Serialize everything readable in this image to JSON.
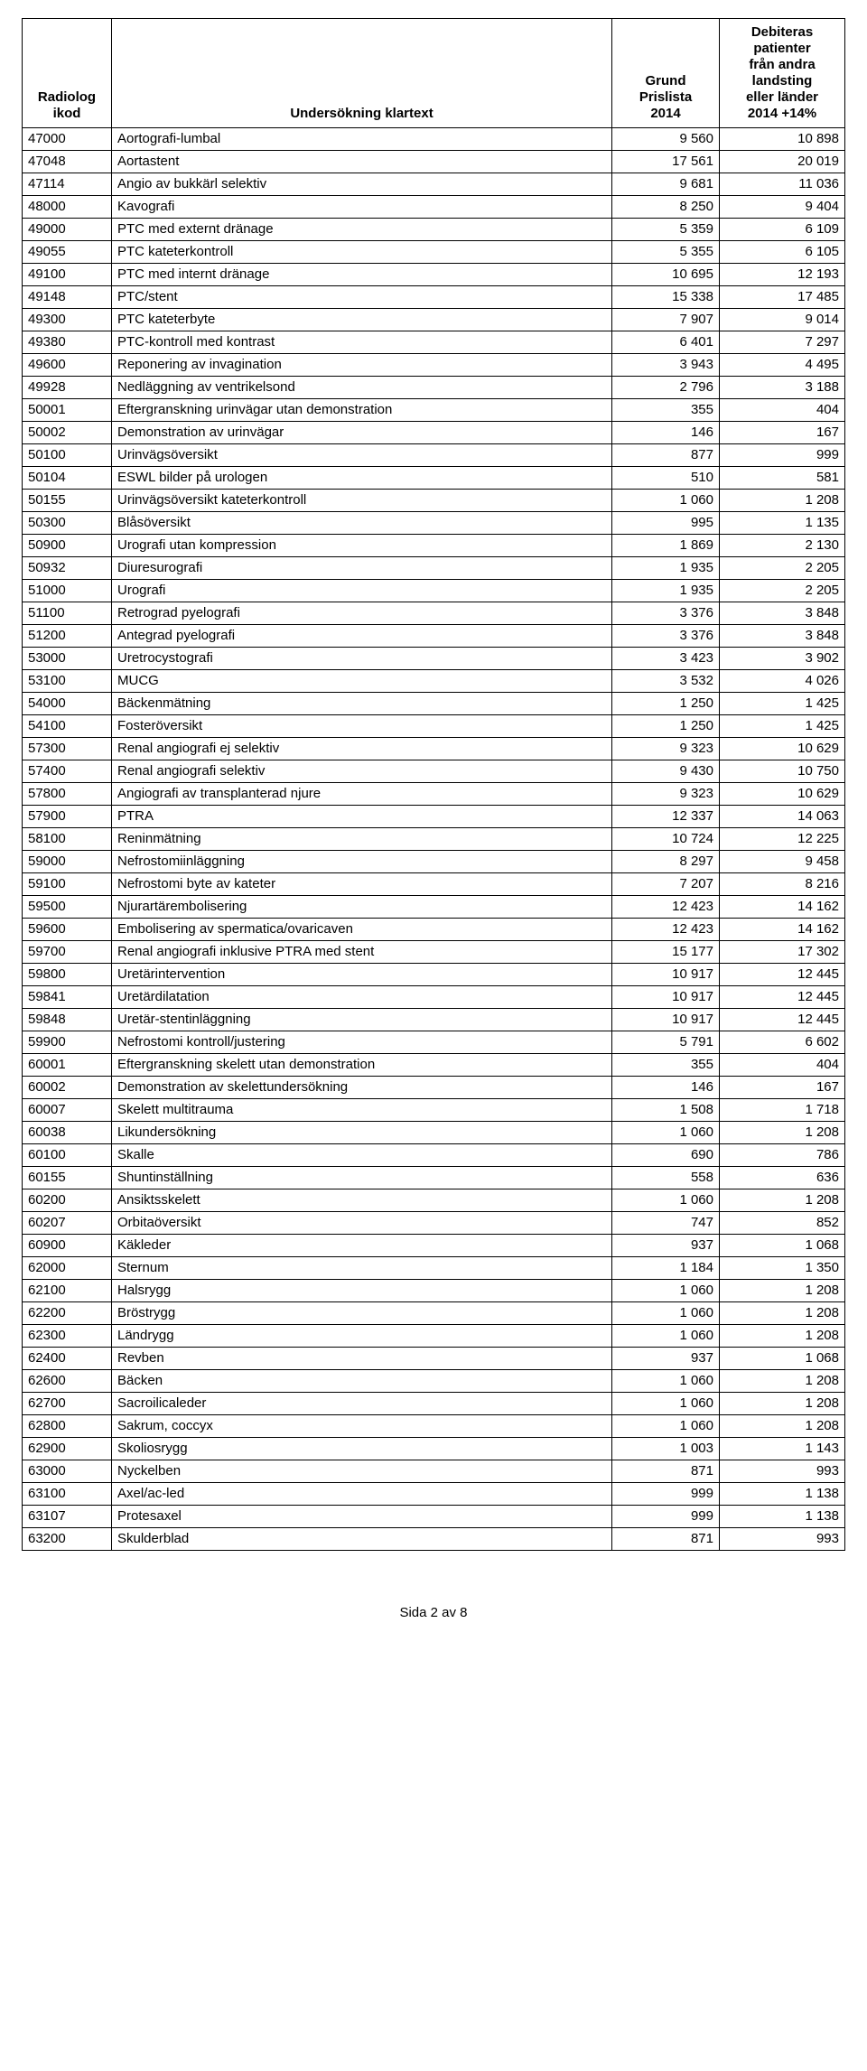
{
  "columns": [
    "Radiolog\nikod",
    "Undersökning klartext",
    "Grund\nPrislista\n2014",
    "Debiteras\npatienter\nfrån andra\nlandsting\neller länder\n2014 +14%"
  ],
  "footer": "Sida 2 av 8",
  "rows": [
    [
      "47000",
      "Aortografi-lumbal",
      "9 560",
      "10 898"
    ],
    [
      "47048",
      "Aortastent",
      "17 561",
      "20 019"
    ],
    [
      "47114",
      "Angio av bukkärl selektiv",
      "9 681",
      "11 036"
    ],
    [
      "48000",
      "Kavografi",
      "8 250",
      "9 404"
    ],
    [
      "49000",
      "PTC med externt dränage",
      "5 359",
      "6 109"
    ],
    [
      "49055",
      "PTC kateterkontroll",
      "5 355",
      "6 105"
    ],
    [
      "49100",
      "PTC med internt dränage",
      "10 695",
      "12 193"
    ],
    [
      "49148",
      "PTC/stent",
      "15 338",
      "17 485"
    ],
    [
      "49300",
      "PTC kateterbyte",
      "7 907",
      "9 014"
    ],
    [
      "49380",
      "PTC-kontroll med kontrast",
      "6 401",
      "7 297"
    ],
    [
      "49600",
      "Reponering av invagination",
      "3 943",
      "4 495"
    ],
    [
      "49928",
      "Nedläggning av ventrikelsond",
      "2 796",
      "3 188"
    ],
    [
      "50001",
      "Eftergranskning urinvägar utan demonstration",
      "355",
      "404"
    ],
    [
      "50002",
      "Demonstration av urinvägar",
      "146",
      "167"
    ],
    [
      "50100",
      "Urinvägsöversikt",
      "877",
      "999"
    ],
    [
      "50104",
      "ESWL bilder på urologen",
      "510",
      "581"
    ],
    [
      "50155",
      "Urinvägsöversikt kateterkontroll",
      "1 060",
      "1 208"
    ],
    [
      "50300",
      "Blåsöversikt",
      "995",
      "1 135"
    ],
    [
      "50900",
      "Urografi utan kompression",
      "1 869",
      "2 130"
    ],
    [
      "50932",
      "Diuresurografi",
      "1 935",
      "2 205"
    ],
    [
      "51000",
      "Urografi",
      "1 935",
      "2 205"
    ],
    [
      "51100",
      "Retrograd pyelografi",
      "3 376",
      "3 848"
    ],
    [
      "51200",
      "Antegrad pyelografi",
      "3 376",
      "3 848"
    ],
    [
      "53000",
      "Uretrocystografi",
      "3 423",
      "3 902"
    ],
    [
      "53100",
      "MUCG",
      "3 532",
      "4 026"
    ],
    [
      "54000",
      "Bäckenmätning",
      "1 250",
      "1 425"
    ],
    [
      "54100",
      "Fosteröversikt",
      "1 250",
      "1 425"
    ],
    [
      "57300",
      "Renal angiografi ej selektiv",
      "9 323",
      "10 629"
    ],
    [
      "57400",
      "Renal angiografi selektiv",
      "9 430",
      "10 750"
    ],
    [
      "57800",
      "Angiografi av transplanterad njure",
      "9 323",
      "10 629"
    ],
    [
      "57900",
      "PTRA",
      "12 337",
      "14 063"
    ],
    [
      "58100",
      "Reninmätning",
      "10 724",
      "12 225"
    ],
    [
      "59000",
      "Nefrostomiinläggning",
      "8 297",
      "9 458"
    ],
    [
      "59100",
      "Nefrostomi byte av kateter",
      "7 207",
      "8 216"
    ],
    [
      "59500",
      "Njurartärembolisering",
      "12 423",
      "14 162"
    ],
    [
      "59600",
      "Embolisering av spermatica/ovaricaven",
      "12 423",
      "14 162"
    ],
    [
      "59700",
      "Renal angiografi inklusive PTRA med stent",
      "15 177",
      "17 302"
    ],
    [
      "59800",
      "Uretärintervention",
      "10 917",
      "12 445"
    ],
    [
      "59841",
      "Uretärdilatation",
      "10 917",
      "12 445"
    ],
    [
      "59848",
      "Uretär-stentinläggning",
      "10 917",
      "12 445"
    ],
    [
      "59900",
      "Nefrostomi kontroll/justering",
      "5 791",
      "6 602"
    ],
    [
      "60001",
      "Eftergranskning skelett utan demonstration",
      "355",
      "404"
    ],
    [
      "60002",
      "Demonstration av skelettundersökning",
      "146",
      "167"
    ],
    [
      "60007",
      "Skelett multitrauma",
      "1 508",
      "1 718"
    ],
    [
      "60038",
      "Likundersökning",
      "1 060",
      "1 208"
    ],
    [
      "60100",
      "Skalle",
      "690",
      "786"
    ],
    [
      "60155",
      "Shuntinställning",
      "558",
      "636"
    ],
    [
      "60200",
      "Ansiktsskelett",
      "1 060",
      "1 208"
    ],
    [
      "60207",
      "Orbitaöversikt",
      "747",
      "852"
    ],
    [
      "60900",
      "Käkleder",
      "937",
      "1 068"
    ],
    [
      "62000",
      "Sternum",
      "1 184",
      "1 350"
    ],
    [
      "62100",
      "Halsrygg",
      "1 060",
      "1 208"
    ],
    [
      "62200",
      "Bröstrygg",
      "1 060",
      "1 208"
    ],
    [
      "62300",
      "Ländrygg",
      "1 060",
      "1 208"
    ],
    [
      "62400",
      "Revben",
      "937",
      "1 068"
    ],
    [
      "62600",
      "Bäcken",
      "1 060",
      "1 208"
    ],
    [
      "62700",
      "Sacroilicaleder",
      "1 060",
      "1 208"
    ],
    [
      "62800",
      "Sakrum, coccyx",
      "1 060",
      "1 208"
    ],
    [
      "62900",
      "Skoliosrygg",
      "1 003",
      "1 143"
    ],
    [
      "63000",
      "Nyckelben",
      "871",
      "993"
    ],
    [
      "63100",
      "Axel/ac-led",
      "999",
      "1 138"
    ],
    [
      "63107",
      "Protesaxel",
      "999",
      "1 138"
    ],
    [
      "63200",
      "Skulderblad",
      "871",
      "993"
    ]
  ]
}
